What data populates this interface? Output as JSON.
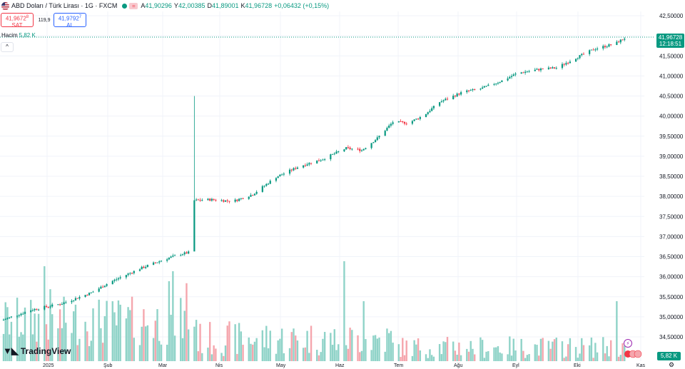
{
  "header": {
    "title": "ABD Doları / Türk Lirası · 1G · FXCM",
    "ohlc": [
      {
        "label": "A",
        "value": "41,90296"
      },
      {
        "label": "Y",
        "value": "42,00385"
      },
      {
        "label": "D",
        "value": "41,89001"
      },
      {
        "label": "K",
        "value": "41,96728"
      }
    ],
    "change": "+0,06432 (+0,15%)",
    "chip": "="
  },
  "trade": {
    "sell_price": "41,9672",
    "sell_sup": "8",
    "sell_label": "SAT",
    "spread": "119,9",
    "buy_price": "41,9792",
    "buy_sup": "7",
    "buy_label": "AL"
  },
  "volume_label": {
    "name": "Hacim",
    "value": "5,82 K"
  },
  "price_box": {
    "price": "41,96728",
    "countdown": "12:18:51"
  },
  "volume_box": "5,82 K",
  "logo": "TradingView",
  "colors": {
    "up": "#089981",
    "down": "#f23645",
    "vol_up": "#8fd3c8",
    "vol_down": "#f5a6ad"
  },
  "chart_data": {
    "type": "candlestick",
    "price_axis": {
      "min": 34.5,
      "max": 42.5,
      "ticks": [
        "42,50000",
        "42,00000",
        "41,50000",
        "41,00000",
        "40,50000",
        "40,00000",
        "39,50000",
        "39,00000",
        "38,50000",
        "38,00000",
        "37,50000",
        "37,00000",
        "36,50000",
        "36,00000",
        "35,50000",
        "35,00000",
        "34,50000"
      ],
      "tick_values": [
        42.5,
        42.0,
        41.5,
        41.0,
        40.5,
        40.0,
        39.5,
        39.0,
        38.5,
        38.0,
        37.5,
        37.0,
        36.5,
        36.0,
        35.5,
        35.0,
        34.5
      ]
    },
    "x_labels": [
      "2025",
      "Şub",
      "Mar",
      "Nis",
      "May",
      "Haz",
      "Tem",
      "Ağu",
      "Eyl",
      "Eki",
      "Kas"
    ],
    "last_price": 41.96728,
    "price_anchors": [
      {
        "d": 0,
        "p": 34.93
      },
      {
        "d": 15,
        "p": 35.18
      },
      {
        "d": 30,
        "p": 35.33
      },
      {
        "d": 45,
        "p": 35.6
      },
      {
        "d": 55,
        "p": 35.87
      },
      {
        "d": 70,
        "p": 36.2
      },
      {
        "d": 82,
        "p": 36.42
      },
      {
        "d": 90,
        "p": 36.55
      },
      {
        "d": 97,
        "p": 36.62
      },
      {
        "d": 98,
        "p": 37.9
      },
      {
        "d": 106,
        "p": 37.92
      },
      {
        "d": 118,
        "p": 37.88
      },
      {
        "d": 128,
        "p": 38.05
      },
      {
        "d": 140,
        "p": 38.48
      },
      {
        "d": 152,
        "p": 38.75
      },
      {
        "d": 164,
        "p": 38.93
      },
      {
        "d": 176,
        "p": 39.2
      },
      {
        "d": 184,
        "p": 39.15
      },
      {
        "d": 192,
        "p": 39.45
      },
      {
        "d": 200,
        "p": 39.85
      },
      {
        "d": 208,
        "p": 39.83
      },
      {
        "d": 216,
        "p": 40.02
      },
      {
        "d": 224,
        "p": 40.35
      },
      {
        "d": 236,
        "p": 40.6
      },
      {
        "d": 245,
        "p": 40.68
      },
      {
        "d": 256,
        "p": 40.88
      },
      {
        "d": 264,
        "p": 41.07
      },
      {
        "d": 276,
        "p": 41.17
      },
      {
        "d": 284,
        "p": 41.2
      },
      {
        "d": 294,
        "p": 41.45
      },
      {
        "d": 304,
        "p": 41.68
      },
      {
        "d": 314,
        "p": 41.8
      },
      {
        "d": 320,
        "p": 41.97
      }
    ],
    "wick_spikes": [
      {
        "d": 98,
        "high": 40.5,
        "low": 37.55
      }
    ],
    "volume_spikes": [
      {
        "d": 21,
        "v": 0.95
      },
      {
        "d": 24,
        "v": 0.72
      },
      {
        "d": 85,
        "v": 0.8
      },
      {
        "d": 87,
        "v": 0.9
      },
      {
        "d": 94,
        "v": 0.78
      },
      {
        "d": 103,
        "v": 0.7
      },
      {
        "d": 175,
        "v": 1.0
      },
      {
        "d": 160,
        "v": 0.66
      },
      {
        "d": 185,
        "v": 0.6
      },
      {
        "d": 315,
        "v": 0.6
      }
    ]
  }
}
